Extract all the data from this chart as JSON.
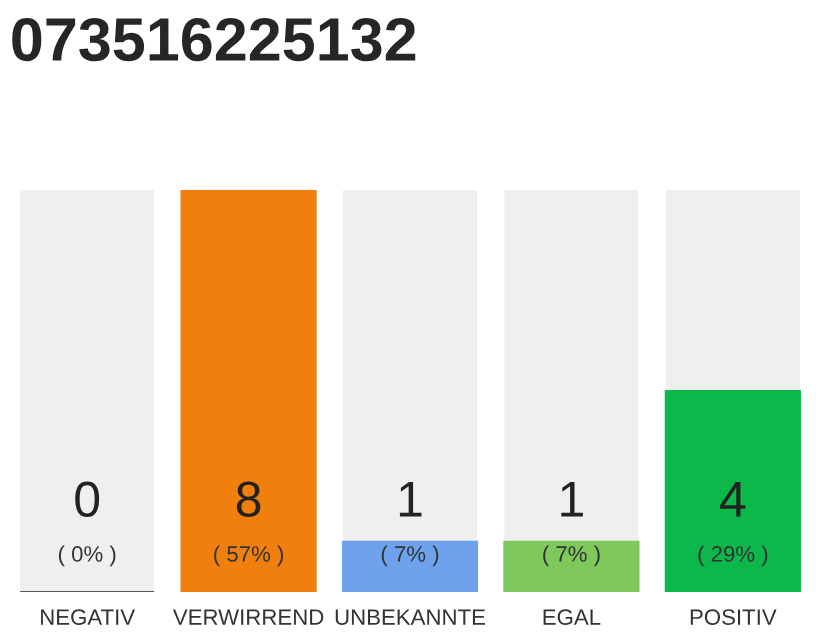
{
  "chart_data": {
    "type": "bar",
    "title": "073516225132",
    "categories": [
      "NEGATIV",
      "VERWIRREND",
      "UNBEKANNTE",
      "EGAL",
      "POSITIV"
    ],
    "values": [
      0,
      8,
      1,
      1,
      4
    ],
    "colors": [
      "#555555",
      "#f07f0e",
      "#6ea2ec",
      "#7ec85c",
      "#0db84a"
    ],
    "data_labels": true,
    "grid": false,
    "legend": false,
    "annotations": [
      "( 0% )",
      "( 57% )",
      "( 7% )",
      "( 7% )",
      "( 29% )"
    ]
  }
}
